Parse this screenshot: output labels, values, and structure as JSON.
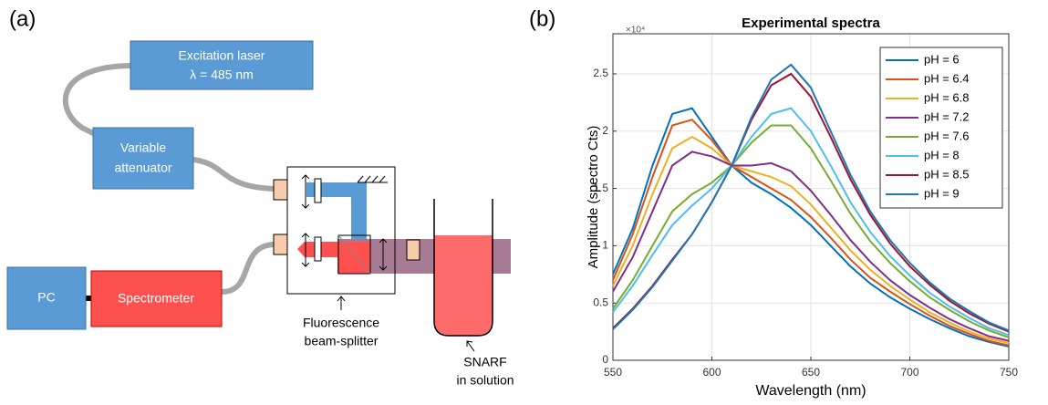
{
  "panel_labels": [
    "(a)",
    "(b)"
  ],
  "diagram": {
    "laser": {
      "line1": "Excitation laser",
      "line2": "λ = 485 nm"
    },
    "attenuator": {
      "line1": "Variable",
      "line2": "attenuator"
    },
    "pc": "PC",
    "spectrometer": "Spectrometer",
    "beam_splitter": {
      "line1": "Fluorescence",
      "line2": "beam-splitter"
    },
    "sample": {
      "line1": "SNARF",
      "line2": "in solution"
    }
  },
  "chart_data": {
    "type": "line",
    "title": "Experimental spectra",
    "x_label": "Wavelength (nm)",
    "y_label": "Amplitude (spectro Cts)",
    "y_exponent_label": "×10⁴",
    "x": [
      550,
      560,
      570,
      580,
      590,
      600,
      610,
      620,
      630,
      640,
      650,
      660,
      670,
      680,
      690,
      700,
      710,
      720,
      730,
      740,
      750
    ],
    "series": [
      {
        "name": "pH = 6",
        "color": "#0072BD",
        "values": [
          0.75,
          1.15,
          1.7,
          2.15,
          2.2,
          1.95,
          1.7,
          1.55,
          1.45,
          1.33,
          1.18,
          1.0,
          0.82,
          0.67,
          0.55,
          0.45,
          0.36,
          0.28,
          0.21,
          0.16,
          0.12
        ]
      },
      {
        "name": "pH = 6.4",
        "color": "#D95319",
        "values": [
          0.7,
          1.1,
          1.6,
          2.05,
          2.1,
          1.92,
          1.7,
          1.6,
          1.5,
          1.4,
          1.25,
          1.07,
          0.88,
          0.72,
          0.6,
          0.49,
          0.39,
          0.3,
          0.23,
          0.17,
          0.13
        ]
      },
      {
        "name": "pH = 6.8",
        "color": "#EDB120",
        "values": [
          0.65,
          1.0,
          1.45,
          1.85,
          1.95,
          1.85,
          1.7,
          1.65,
          1.6,
          1.52,
          1.36,
          1.16,
          0.96,
          0.79,
          0.65,
          0.53,
          0.42,
          0.33,
          0.25,
          0.19,
          0.15
        ]
      },
      {
        "name": "pH = 7.2",
        "color": "#7E2F8E",
        "values": [
          0.6,
          0.9,
          1.3,
          1.7,
          1.82,
          1.78,
          1.7,
          1.7,
          1.72,
          1.65,
          1.48,
          1.27,
          1.05,
          0.86,
          0.7,
          0.57,
          0.46,
          0.36,
          0.28,
          0.21,
          0.17
        ]
      },
      {
        "name": "pH = 7.6",
        "color": "#77AC30",
        "values": [
          0.45,
          0.7,
          1.0,
          1.3,
          1.45,
          1.55,
          1.7,
          1.9,
          2.05,
          2.05,
          1.85,
          1.57,
          1.28,
          1.04,
          0.85,
          0.69,
          0.55,
          0.44,
          0.34,
          0.26,
          0.2
        ]
      },
      {
        "name": "pH = 8",
        "color": "#4DBEEE",
        "values": [
          0.42,
          0.65,
          0.92,
          1.18,
          1.35,
          1.5,
          1.7,
          1.95,
          2.15,
          2.2,
          2.0,
          1.7,
          1.38,
          1.12,
          0.91,
          0.74,
          0.59,
          0.47,
          0.37,
          0.28,
          0.22
        ]
      },
      {
        "name": "pH = 8.5",
        "color": "#A2142F",
        "values": [
          0.28,
          0.45,
          0.65,
          0.88,
          1.1,
          1.38,
          1.7,
          2.1,
          2.4,
          2.5,
          2.3,
          1.95,
          1.58,
          1.27,
          1.02,
          0.82,
          0.66,
          0.52,
          0.41,
          0.32,
          0.25
        ]
      },
      {
        "name": "pH = 9",
        "color": "#1F77B4",
        "values": [
          0.27,
          0.44,
          0.64,
          0.87,
          1.1,
          1.38,
          1.7,
          2.12,
          2.45,
          2.58,
          2.38,
          2.0,
          1.62,
          1.3,
          1.05,
          0.85,
          0.68,
          0.54,
          0.43,
          0.33,
          0.26
        ]
      }
    ],
    "xlim": [
      550,
      750
    ],
    "xticks": [
      550,
      600,
      650,
      700,
      750
    ],
    "ylim": [
      0,
      2.85
    ],
    "yticks": [
      0,
      0.5,
      1,
      1.5,
      2,
      2.5
    ],
    "grid": true,
    "legend": "top-right"
  }
}
